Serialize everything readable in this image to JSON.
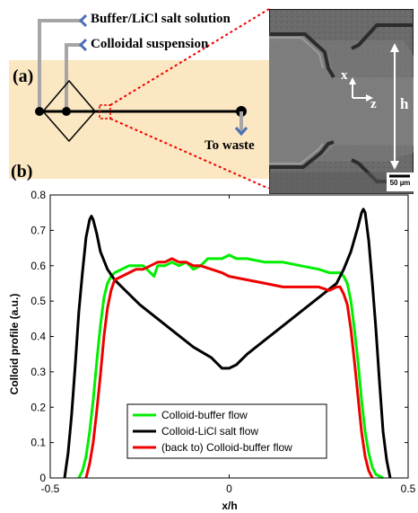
{
  "figure": {
    "panel_a_label": "(a)",
    "panel_b_label": "(b)",
    "schematic": {
      "inlet_buffer_label": "Buffer/LiCl salt solution",
      "inlet_colloid_label": "Colloidal suspension",
      "outlet_label": "To waste",
      "background_color": "#fbe7c1",
      "arrow_color": "#4a6fb5"
    },
    "micrograph": {
      "axis_x": "x",
      "axis_z": "z",
      "height_label": "h",
      "scalebar_label": "50 µm"
    }
  },
  "chart_data": {
    "type": "line",
    "xlabel": "x/h",
    "ylabel": "Colloid profile (a.u.)",
    "xlim": [
      -0.5,
      0.5
    ],
    "ylim": [
      0,
      0.8
    ],
    "xticks": [
      "-0.5",
      "0",
      "0.5"
    ],
    "yticks": [
      "0",
      "0.1",
      "0.2",
      "0.3",
      "0.4",
      "0.5",
      "0.6",
      "0.7",
      "0.8"
    ],
    "grid": false,
    "legend_position": "bottom-center",
    "series": [
      {
        "name": "Colloid-buffer flow",
        "color": "#00ee00",
        "x": [
          -0.42,
          -0.41,
          -0.4,
          -0.39,
          -0.38,
          -0.37,
          -0.36,
          -0.35,
          -0.34,
          -0.33,
          -0.32,
          -0.3,
          -0.28,
          -0.26,
          -0.24,
          -0.23,
          -0.22,
          -0.21,
          -0.2,
          -0.18,
          -0.16,
          -0.14,
          -0.12,
          -0.1,
          -0.08,
          -0.06,
          -0.04,
          -0.02,
          0.0,
          0.02,
          0.05,
          0.1,
          0.15,
          0.2,
          0.25,
          0.28,
          0.3,
          0.31,
          0.32,
          0.33,
          0.34,
          0.35,
          0.36,
          0.37,
          0.38,
          0.39,
          0.4,
          0.41,
          0.42,
          0.43
        ],
        "y": [
          0.0,
          0.02,
          0.06,
          0.13,
          0.22,
          0.33,
          0.43,
          0.51,
          0.55,
          0.57,
          0.58,
          0.59,
          0.6,
          0.6,
          0.6,
          0.59,
          0.58,
          0.57,
          0.6,
          0.6,
          0.61,
          0.6,
          0.61,
          0.59,
          0.6,
          0.62,
          0.62,
          0.62,
          0.63,
          0.62,
          0.62,
          0.61,
          0.61,
          0.6,
          0.59,
          0.58,
          0.58,
          0.58,
          0.57,
          0.55,
          0.5,
          0.42,
          0.33,
          0.22,
          0.13,
          0.07,
          0.03,
          0.01,
          0.005,
          0.0
        ]
      },
      {
        "name": "Colloid-LiCl salt flow",
        "color": "#000000",
        "x": [
          -0.46,
          -0.45,
          -0.44,
          -0.43,
          -0.42,
          -0.41,
          -0.4,
          -0.39,
          -0.385,
          -0.38,
          -0.37,
          -0.36,
          -0.34,
          -0.32,
          -0.3,
          -0.25,
          -0.2,
          -0.15,
          -0.1,
          -0.05,
          -0.02,
          0.0,
          0.02,
          0.05,
          0.1,
          0.15,
          0.2,
          0.25,
          0.3,
          0.32,
          0.34,
          0.36,
          0.37,
          0.375,
          0.38,
          0.39,
          0.4,
          0.41,
          0.42,
          0.43,
          0.44,
          0.45
        ],
        "y": [
          0.0,
          0.07,
          0.18,
          0.32,
          0.47,
          0.58,
          0.68,
          0.73,
          0.74,
          0.73,
          0.69,
          0.64,
          0.59,
          0.56,
          0.54,
          0.49,
          0.45,
          0.41,
          0.37,
          0.34,
          0.31,
          0.31,
          0.32,
          0.35,
          0.39,
          0.43,
          0.47,
          0.51,
          0.55,
          0.59,
          0.64,
          0.71,
          0.75,
          0.76,
          0.75,
          0.67,
          0.55,
          0.42,
          0.27,
          0.13,
          0.05,
          0.0
        ]
      },
      {
        "name": "(back to) Colloid-buffer flow",
        "color": "#ee0000",
        "x": [
          -0.4,
          -0.39,
          -0.38,
          -0.37,
          -0.36,
          -0.35,
          -0.34,
          -0.33,
          -0.32,
          -0.3,
          -0.28,
          -0.26,
          -0.24,
          -0.22,
          -0.2,
          -0.18,
          -0.16,
          -0.14,
          -0.12,
          -0.1,
          -0.08,
          -0.05,
          -0.02,
          0.0,
          0.05,
          0.1,
          0.15,
          0.2,
          0.25,
          0.28,
          0.3,
          0.31,
          0.32,
          0.33,
          0.34,
          0.35,
          0.36,
          0.37,
          0.38,
          0.39,
          0.4
        ],
        "y": [
          0.0,
          0.04,
          0.1,
          0.19,
          0.29,
          0.4,
          0.48,
          0.53,
          0.56,
          0.57,
          0.58,
          0.59,
          0.59,
          0.6,
          0.61,
          0.61,
          0.62,
          0.61,
          0.61,
          0.6,
          0.6,
          0.59,
          0.58,
          0.57,
          0.56,
          0.55,
          0.54,
          0.54,
          0.54,
          0.53,
          0.54,
          0.54,
          0.52,
          0.49,
          0.42,
          0.33,
          0.23,
          0.13,
          0.06,
          0.02,
          0.0
        ]
      }
    ]
  }
}
